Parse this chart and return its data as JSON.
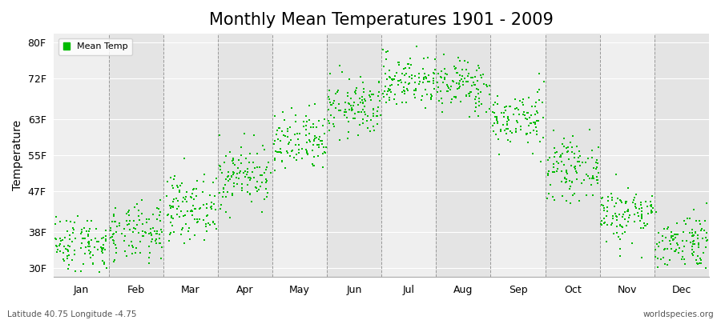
{
  "title": "Monthly Mean Temperatures 1901 - 2009",
  "ylabel": "Temperature",
  "footer_left": "Latitude 40.75 Longitude -4.75",
  "footer_right": "worldspecies.org",
  "legend_label": "Mean Temp",
  "yticks": [
    30,
    38,
    47,
    55,
    63,
    72,
    80
  ],
  "ytick_labels": [
    "30F",
    "38F",
    "47F",
    "55F",
    "63F",
    "72F",
    "80F"
  ],
  "ylim": [
    28,
    82
  ],
  "months": [
    "Jan",
    "Feb",
    "Mar",
    "Apr",
    "May",
    "Jun",
    "Jul",
    "Aug",
    "Sep",
    "Oct",
    "Nov",
    "Dec"
  ],
  "dot_color": "#00BB00",
  "background_color": "#ffffff",
  "plot_bg_color_dark": "#e4e4e4",
  "plot_bg_color_light": "#efefef",
  "title_fontsize": 15,
  "axis_label_fontsize": 10,
  "tick_fontsize": 9,
  "monthly_means": [
    35.5,
    37.5,
    43.5,
    50.5,
    57.5,
    65.5,
    71.5,
    70.5,
    63.0,
    52.0,
    42.0,
    36.0
  ],
  "monthly_stds": [
    3.2,
    3.2,
    3.5,
    3.5,
    3.5,
    3.2,
    3.0,
    3.0,
    3.2,
    3.2,
    3.2,
    3.2
  ],
  "num_years": 109,
  "seed": 42,
  "dot_size": 3,
  "grid_color": "#ffffff",
  "dashed_line_color": "#999999"
}
